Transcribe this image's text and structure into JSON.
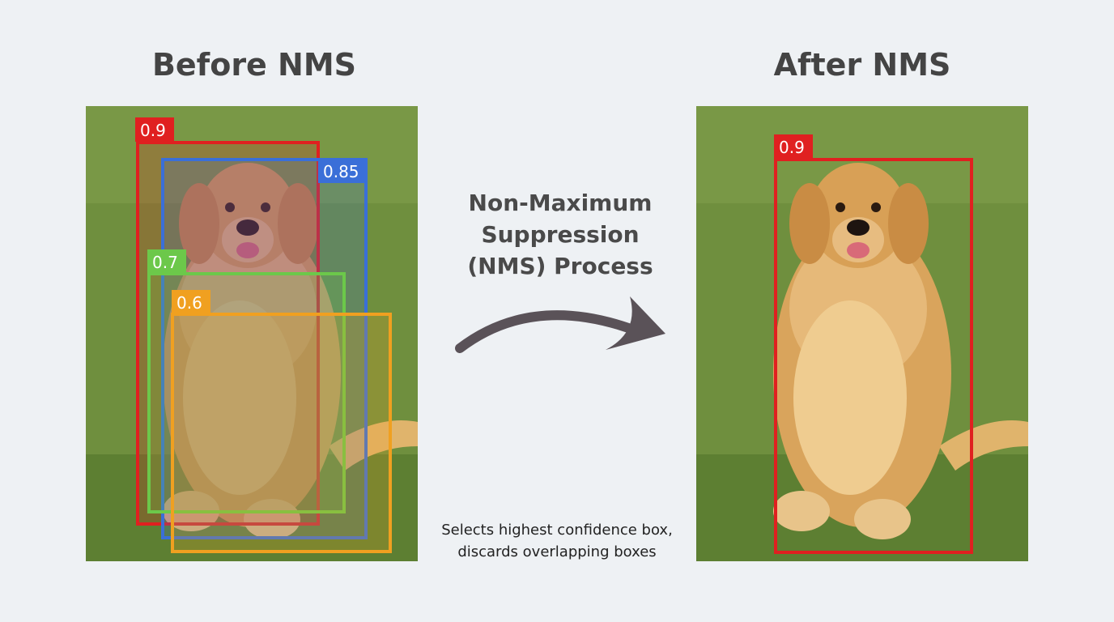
{
  "header": {
    "before": "Before NMS",
    "after": "After NMS"
  },
  "process": {
    "lines": [
      "Non-Maximum",
      "Suppression",
      "(NMS) Process"
    ]
  },
  "caption": {
    "lines": [
      "Selects highest confidence box,",
      "discards overlapping boxes"
    ]
  },
  "before_boxes": [
    {
      "label": "0.9",
      "color": "#e02020"
    },
    {
      "label": "0.85",
      "color": "#3a6fd8"
    },
    {
      "label": "0.7",
      "color": "#6cc84a"
    },
    {
      "label": "0.6",
      "color": "#f0a020"
    }
  ],
  "after_boxes": [
    {
      "label": "0.9",
      "color": "#e02020"
    }
  ]
}
